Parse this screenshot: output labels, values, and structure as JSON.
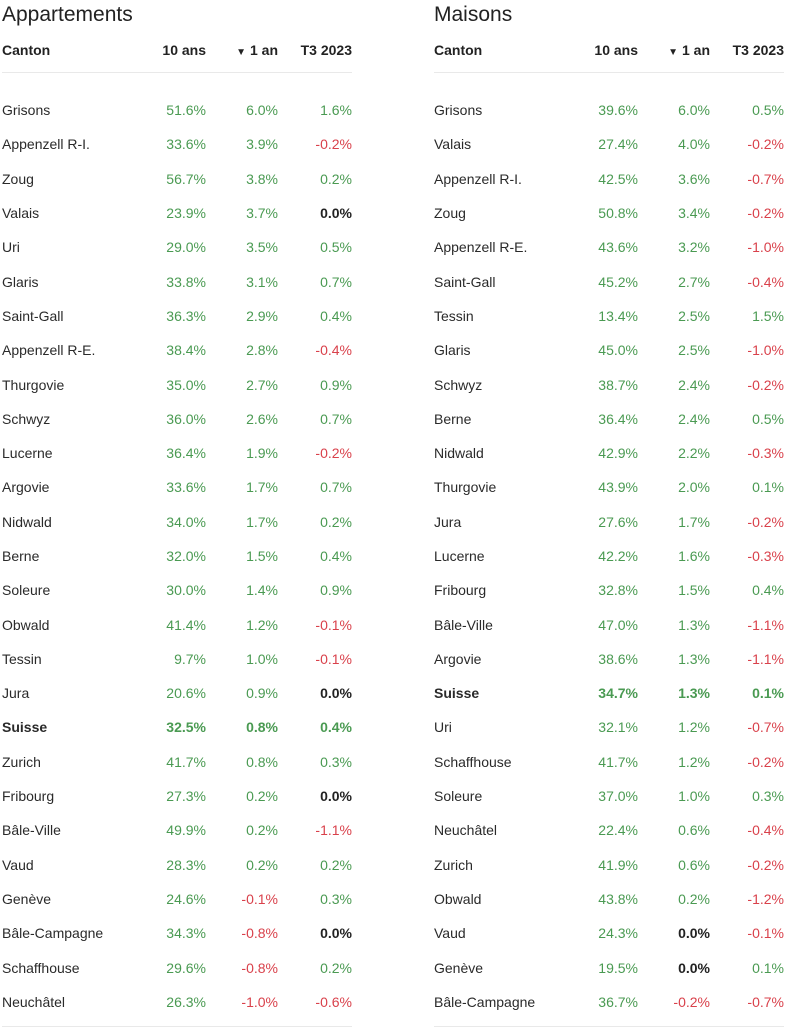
{
  "apartments": {
    "title": "Appartements",
    "headers": {
      "canton": "Canton",
      "ten": "10 ans",
      "one": "1 an",
      "t3": "T3 2023"
    },
    "rows": [
      {
        "canton": "Grisons",
        "ten": "51.6%",
        "one": "6.0%",
        "t3": "1.6%"
      },
      {
        "canton": "Appenzell R-I.",
        "ten": "33.6%",
        "one": "3.9%",
        "t3": "-0.2%"
      },
      {
        "canton": "Zoug",
        "ten": "56.7%",
        "one": "3.8%",
        "t3": "0.2%"
      },
      {
        "canton": "Valais",
        "ten": "23.9%",
        "one": "3.7%",
        "t3": "0.0%"
      },
      {
        "canton": "Uri",
        "ten": "29.0%",
        "one": "3.5%",
        "t3": "0.5%"
      },
      {
        "canton": "Glaris",
        "ten": "33.8%",
        "one": "3.1%",
        "t3": "0.7%"
      },
      {
        "canton": "Saint-Gall",
        "ten": "36.3%",
        "one": "2.9%",
        "t3": "0.4%"
      },
      {
        "canton": "Appenzell R-E.",
        "ten": "38.4%",
        "one": "2.8%",
        "t3": "-0.4%"
      },
      {
        "canton": "Thurgovie",
        "ten": "35.0%",
        "one": "2.7%",
        "t3": "0.9%"
      },
      {
        "canton": "Schwyz",
        "ten": "36.0%",
        "one": "2.6%",
        "t3": "0.7%"
      },
      {
        "canton": "Lucerne",
        "ten": "36.4%",
        "one": "1.9%",
        "t3": "-0.2%"
      },
      {
        "canton": "Argovie",
        "ten": "33.6%",
        "one": "1.7%",
        "t3": "0.7%"
      },
      {
        "canton": "Nidwald",
        "ten": "34.0%",
        "one": "1.7%",
        "t3": "0.2%"
      },
      {
        "canton": "Berne",
        "ten": "32.0%",
        "one": "1.5%",
        "t3": "0.4%"
      },
      {
        "canton": "Soleure",
        "ten": "30.0%",
        "one": "1.4%",
        "t3": "0.9%"
      },
      {
        "canton": "Obwald",
        "ten": "41.4%",
        "one": "1.2%",
        "t3": "-0.1%"
      },
      {
        "canton": "Tessin",
        "ten": "9.7%",
        "one": "1.0%",
        "t3": "-0.1%"
      },
      {
        "canton": "Jura",
        "ten": "20.6%",
        "one": "0.9%",
        "t3": "0.0%"
      },
      {
        "canton": "Suisse",
        "ten": "32.5%",
        "one": "0.8%",
        "t3": "0.4%",
        "bold": true
      },
      {
        "canton": "Zurich",
        "ten": "41.7%",
        "one": "0.8%",
        "t3": "0.3%"
      },
      {
        "canton": "Fribourg",
        "ten": "27.3%",
        "one": "0.2%",
        "t3": "0.0%"
      },
      {
        "canton": "Bâle-Ville",
        "ten": "49.9%",
        "one": "0.2%",
        "t3": "-1.1%"
      },
      {
        "canton": "Vaud",
        "ten": "28.3%",
        "one": "0.2%",
        "t3": "0.2%"
      },
      {
        "canton": "Genève",
        "ten": "24.6%",
        "one": "-0.1%",
        "t3": "0.3%"
      },
      {
        "canton": "Bâle-Campagne",
        "ten": "34.3%",
        "one": "-0.8%",
        "t3": "0.0%"
      },
      {
        "canton": "Schaffhouse",
        "ten": "29.6%",
        "one": "-0.8%",
        "t3": "0.2%"
      },
      {
        "canton": "Neuchâtel",
        "ten": "26.3%",
        "one": "-1.0%",
        "t3": "-0.6%"
      }
    ]
  },
  "houses": {
    "title": "Maisons",
    "headers": {
      "canton": "Canton",
      "ten": "10 ans",
      "one": "1 an",
      "t3": "T3 2023"
    },
    "rows": [
      {
        "canton": "Grisons",
        "ten": "39.6%",
        "one": "6.0%",
        "t3": "0.5%"
      },
      {
        "canton": "Valais",
        "ten": "27.4%",
        "one": "4.0%",
        "t3": "-0.2%"
      },
      {
        "canton": "Appenzell R-I.",
        "ten": "42.5%",
        "one": "3.6%",
        "t3": "-0.7%"
      },
      {
        "canton": "Zoug",
        "ten": "50.8%",
        "one": "3.4%",
        "t3": "-0.2%"
      },
      {
        "canton": "Appenzell R-E.",
        "ten": "43.6%",
        "one": "3.2%",
        "t3": "-1.0%"
      },
      {
        "canton": "Saint-Gall",
        "ten": "45.2%",
        "one": "2.7%",
        "t3": "-0.4%"
      },
      {
        "canton": "Tessin",
        "ten": "13.4%",
        "one": "2.5%",
        "t3": "1.5%"
      },
      {
        "canton": "Glaris",
        "ten": "45.0%",
        "one": "2.5%",
        "t3": "-1.0%"
      },
      {
        "canton": "Schwyz",
        "ten": "38.7%",
        "one": "2.4%",
        "t3": "-0.2%"
      },
      {
        "canton": "Berne",
        "ten": "36.4%",
        "one": "2.4%",
        "t3": "0.5%"
      },
      {
        "canton": "Nidwald",
        "ten": "42.9%",
        "one": "2.2%",
        "t3": "-0.3%"
      },
      {
        "canton": "Thurgovie",
        "ten": "43.9%",
        "one": "2.0%",
        "t3": "0.1%"
      },
      {
        "canton": "Jura",
        "ten": "27.6%",
        "one": "1.7%",
        "t3": "-0.2%"
      },
      {
        "canton": "Lucerne",
        "ten": "42.2%",
        "one": "1.6%",
        "t3": "-0.3%"
      },
      {
        "canton": "Fribourg",
        "ten": "32.8%",
        "one": "1.5%",
        "t3": "0.4%"
      },
      {
        "canton": "Bâle-Ville",
        "ten": "47.0%",
        "one": "1.3%",
        "t3": "-1.1%"
      },
      {
        "canton": "Argovie",
        "ten": "38.6%",
        "one": "1.3%",
        "t3": "-1.1%"
      },
      {
        "canton": "Suisse",
        "ten": "34.7%",
        "one": "1.3%",
        "t3": "0.1%",
        "bold": true
      },
      {
        "canton": "Uri",
        "ten": "32.1%",
        "one": "1.2%",
        "t3": "-0.7%"
      },
      {
        "canton": "Schaffhouse",
        "ten": "41.7%",
        "one": "1.2%",
        "t3": "-0.2%"
      },
      {
        "canton": "Soleure",
        "ten": "37.0%",
        "one": "1.0%",
        "t3": "0.3%"
      },
      {
        "canton": "Neuchâtel",
        "ten": "22.4%",
        "one": "0.6%",
        "t3": "-0.4%"
      },
      {
        "canton": "Zurich",
        "ten": "41.9%",
        "one": "0.6%",
        "t3": "-0.2%"
      },
      {
        "canton": "Obwald",
        "ten": "43.8%",
        "one": "0.2%",
        "t3": "-1.2%"
      },
      {
        "canton": "Vaud",
        "ten": "24.3%",
        "one": "0.0%",
        "t3": "-0.1%"
      },
      {
        "canton": "Genève",
        "ten": "19.5%",
        "one": "0.0%",
        "t3": "0.1%"
      },
      {
        "canton": "Bâle-Campagne",
        "ten": "36.7%",
        "one": "-0.2%",
        "t3": "-0.7%"
      }
    ]
  },
  "sort_icon": "triangle-down-icon",
  "colors": {
    "positive": "#4a9a52",
    "negative": "#d9414b",
    "neutral": "#222222"
  }
}
